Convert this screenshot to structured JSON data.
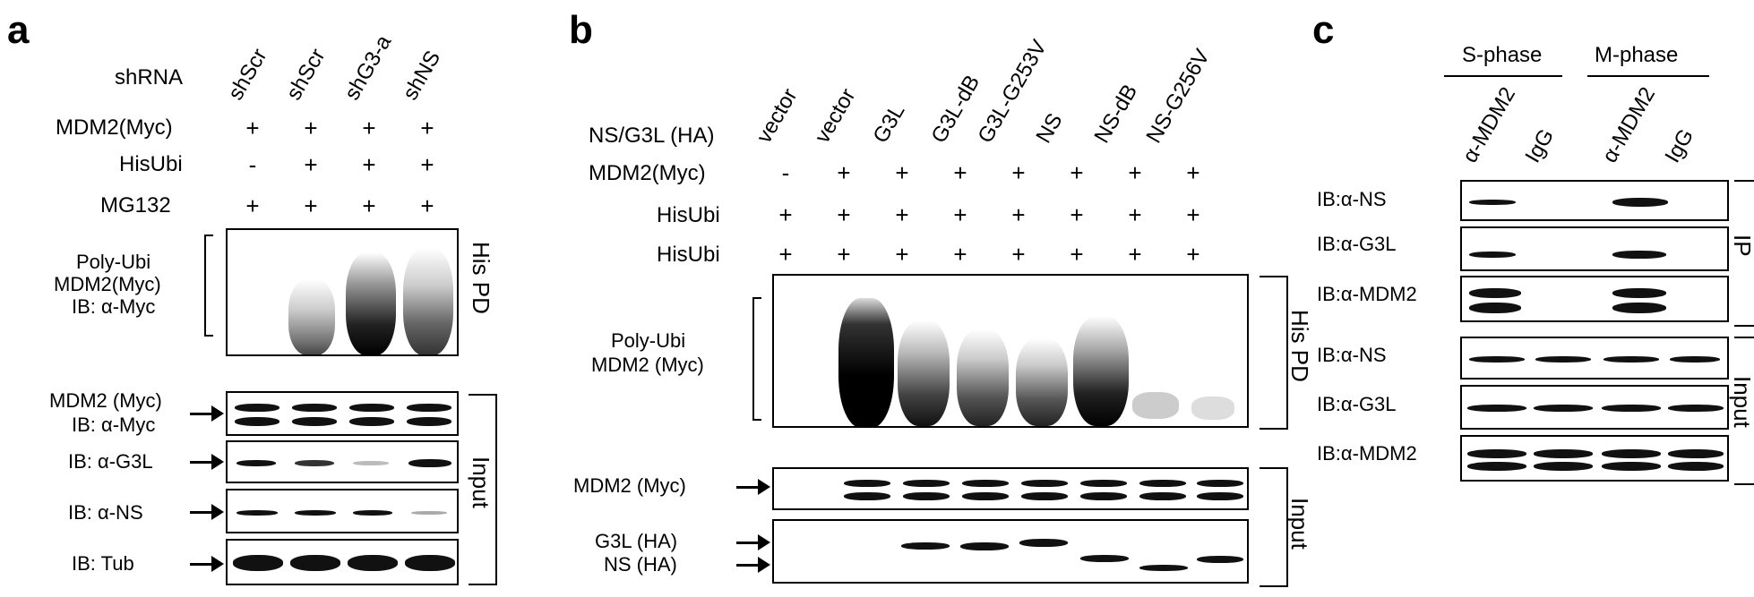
{
  "panel_a": {
    "letter": "a",
    "row_labels": [
      "shRNA",
      "MDM2(Myc)",
      "HisUbi",
      "MG132"
    ],
    "lanes": [
      "shScr",
      "shScr",
      "shG3-a",
      "shNS"
    ],
    "signs": [
      [
        "+",
        "+",
        "+",
        "+"
      ],
      [
        "-",
        "+",
        "+",
        "+"
      ],
      [
        "+",
        "+",
        "+",
        "+"
      ]
    ],
    "pd_label_lines": [
      "Poly-Ubi",
      "MDM2(Myc)",
      "IB: α-Myc"
    ],
    "pd_side": "His PD",
    "blot_labels": [
      [
        "MDM2 (Myc)",
        "IB: α-Myc"
      ],
      [
        "IB: α-G3L"
      ],
      [
        "IB: α-NS"
      ],
      [
        "IB: Tub"
      ]
    ],
    "input_side": "Input"
  },
  "panel_b": {
    "letter": "b",
    "row_labels": [
      "NS/G3L (HA)",
      "MDM2(Myc)",
      "HisUbi",
      "HisUbi"
    ],
    "lanes": [
      "vector",
      "vector",
      "G3L",
      "G3L-dB",
      "G3L-G253V",
      "NS",
      "NS-dB",
      "NS-G256V"
    ],
    "signs": [
      [
        "-",
        "+",
        "+",
        "+",
        "+",
        "+",
        "+",
        "+"
      ],
      [
        "+",
        "+",
        "+",
        "+",
        "+",
        "+",
        "+",
        "+"
      ],
      [
        "+",
        "+",
        "+",
        "+",
        "+",
        "+",
        "+",
        "+"
      ]
    ],
    "pd_label_lines": [
      "Poly-Ubi",
      "MDM2 (Myc)"
    ],
    "pd_side": "His PD",
    "blot_label_1": "MDM2 (Myc)",
    "blot_label_2": [
      "G3L (HA)",
      "NS (HA)"
    ],
    "input_side": "Input"
  },
  "panel_c": {
    "letter": "c",
    "phases": [
      "S-phase",
      "M-phase"
    ],
    "lanes": [
      "α-MDM2",
      "IgG",
      "α-MDM2",
      "IgG"
    ],
    "ip_labels": [
      "IB:α-NS",
      "IB:α-G3L",
      "IB:α-MDM2"
    ],
    "ip_side": "IP",
    "input_labels": [
      "IB:α-NS",
      "IB:α-G3L",
      "IB:α-MDM2"
    ],
    "input_side": "Input"
  }
}
